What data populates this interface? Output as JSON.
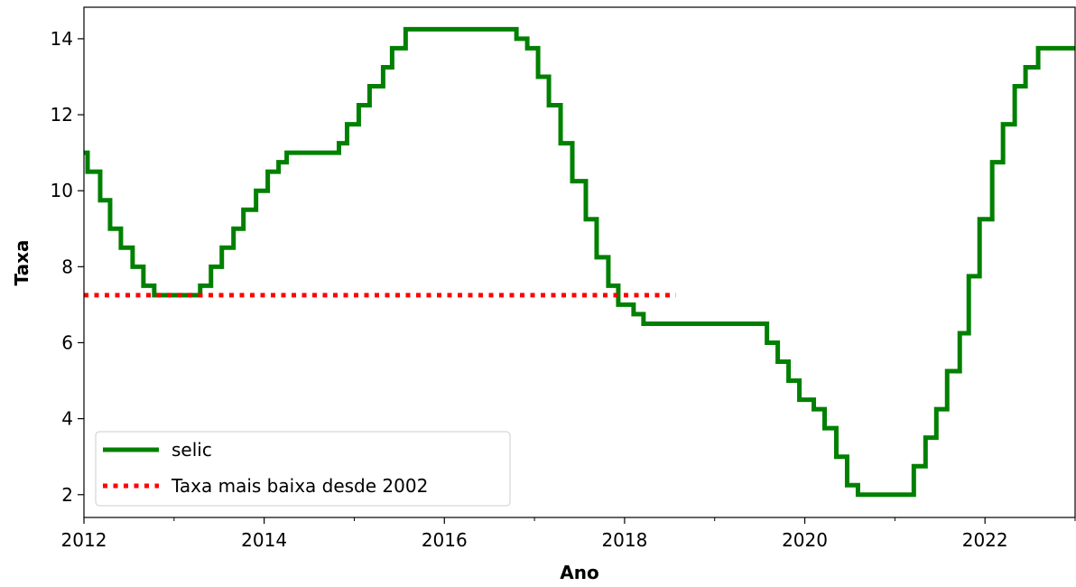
{
  "chart_data": {
    "type": "step",
    "xlabel": "Ano",
    "ylabel": "Taxa",
    "xlim": [
      2012,
      2023
    ],
    "ylim": [
      1.4,
      14.83
    ],
    "xticks": [
      2012,
      2014,
      2016,
      2018,
      2020,
      2022
    ],
    "xminorticks": [
      2013,
      2015,
      2017,
      2019,
      2021,
      2023
    ],
    "yticks": [
      2,
      4,
      6,
      8,
      10,
      12,
      14
    ],
    "legend": "lower left",
    "series": [
      {
        "name": "selic",
        "color": "#008000",
        "style": "solid",
        "x": [
          2012.0,
          2012.04,
          2012.18,
          2012.29,
          2012.41,
          2012.54,
          2012.66,
          2012.78,
          2013.29,
          2013.41,
          2013.53,
          2013.66,
          2013.77,
          2013.91,
          2014.04,
          2014.16,
          2014.25,
          2014.83,
          2014.92,
          2015.05,
          2015.17,
          2015.32,
          2015.42,
          2015.57,
          2016.8,
          2016.92,
          2017.04,
          2017.16,
          2017.29,
          2017.42,
          2017.57,
          2017.69,
          2017.82,
          2017.93,
          2018.1,
          2018.21,
          2019.58,
          2019.7,
          2019.82,
          2019.94,
          2020.1,
          2020.22,
          2020.35,
          2020.47,
          2020.59,
          2021.21,
          2021.34,
          2021.46,
          2021.58,
          2021.72,
          2021.82,
          2021.94,
          2022.08,
          2022.2,
          2022.33,
          2022.45,
          2022.59,
          2023.0
        ],
        "values": [
          11.0,
          10.5,
          9.75,
          9.0,
          8.5,
          8.0,
          7.5,
          7.25,
          7.5,
          8.0,
          8.5,
          9.0,
          9.5,
          10.0,
          10.5,
          10.75,
          11.0,
          11.25,
          11.75,
          12.25,
          12.75,
          13.25,
          13.75,
          14.25,
          14.0,
          13.75,
          13.0,
          12.25,
          11.25,
          10.25,
          9.25,
          8.25,
          7.5,
          7.0,
          6.75,
          6.5,
          6.0,
          5.5,
          5.0,
          4.5,
          4.25,
          3.75,
          3.0,
          2.25,
          2.0,
          2.75,
          3.5,
          4.25,
          5.25,
          6.25,
          7.75,
          9.25,
          10.75,
          11.75,
          12.75,
          13.25,
          13.75,
          13.75
        ]
      },
      {
        "name": "Taxa mais baixa desde 2002",
        "color": "#ff0000",
        "style": "dotted",
        "x": [
          2012.0,
          2018.57
        ],
        "values": [
          7.25,
          7.25
        ]
      }
    ]
  }
}
